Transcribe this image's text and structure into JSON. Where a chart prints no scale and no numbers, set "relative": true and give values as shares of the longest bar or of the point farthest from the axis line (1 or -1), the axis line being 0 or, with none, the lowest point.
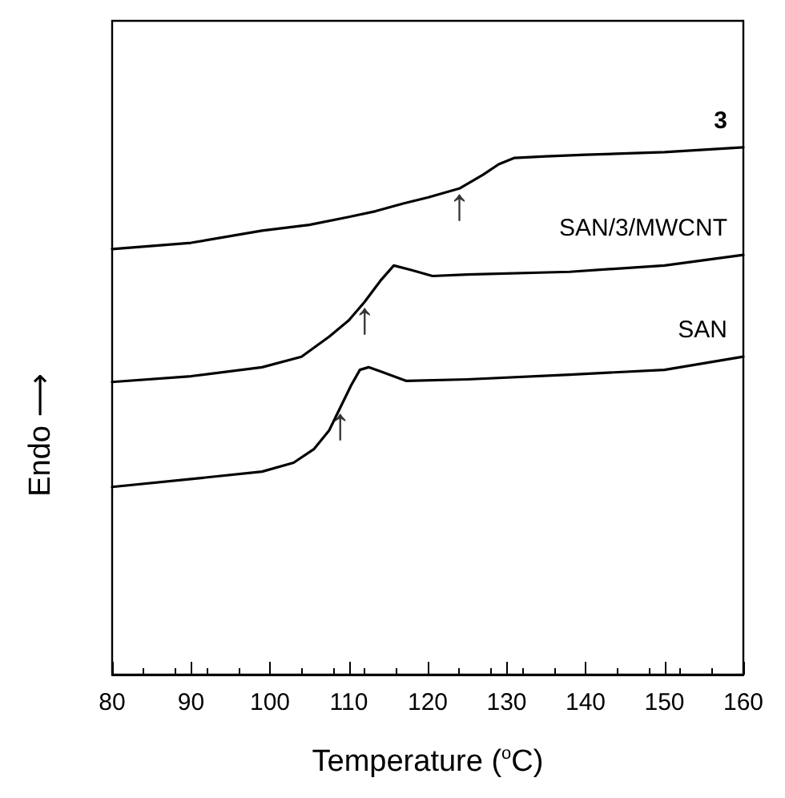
{
  "chart_data": {
    "type": "line",
    "xlabel": "Temperature ($^{o}$C)",
    "ylabel": "Endo ⟶",
    "relative": true,
    "grid": false,
    "legend": false,
    "marker": "none",
    "line_style": "solid",
    "xlim": [
      80,
      160
    ],
    "xticks": [
      80,
      90,
      100,
      110,
      120,
      130,
      140,
      150,
      160
    ],
    "series": [
      {
        "name": "3",
        "color": "#000000",
        "x": [
          80,
          90,
          99,
          105,
          110,
          113.4,
          117,
          120,
          124,
          127,
          129,
          131,
          135,
          140,
          150,
          160
        ],
        "values": [
          0.807,
          0.819,
          0.842,
          0.853,
          0.868,
          0.879,
          0.894,
          0.905,
          0.922,
          0.948,
          0.968,
          0.98,
          0.983,
          0.986,
          0.991,
          1
        ]
      },
      {
        "name": "SAN/3/MWCNT",
        "color": "#000000",
        "x": [
          80,
          90,
          99,
          104,
          107.5,
          110,
          112,
          114,
          115.7,
          118,
          120.6,
          125,
          138,
          150,
          160
        ],
        "values": [
          0.555,
          0.566,
          0.583,
          0.603,
          0.641,
          0.672,
          0.707,
          0.747,
          0.776,
          0.767,
          0.756,
          0.759,
          0.764,
          0.776,
          0.796
        ]
      },
      {
        "name": "SAN",
        "color": "#000000",
        "x": [
          80,
          90,
          99,
          103,
          105.6,
          107.5,
          108.9,
          110.3,
          111.4,
          112.5,
          114,
          117.3,
          125,
          138,
          150,
          160
        ],
        "values": [
          0.356,
          0.371,
          0.385,
          0.402,
          0.428,
          0.463,
          0.506,
          0.549,
          0.578,
          0.583,
          0.575,
          0.557,
          0.56,
          0.569,
          0.578,
          0.603
        ]
      }
    ],
    "annotations": [
      {
        "text": "↑",
        "x": 124,
        "y": 0.922
      },
      {
        "text": "↑",
        "x": 112,
        "y": 0.707
      },
      {
        "text": "↑",
        "x": 108.9,
        "y": 0.506
      }
    ]
  }
}
